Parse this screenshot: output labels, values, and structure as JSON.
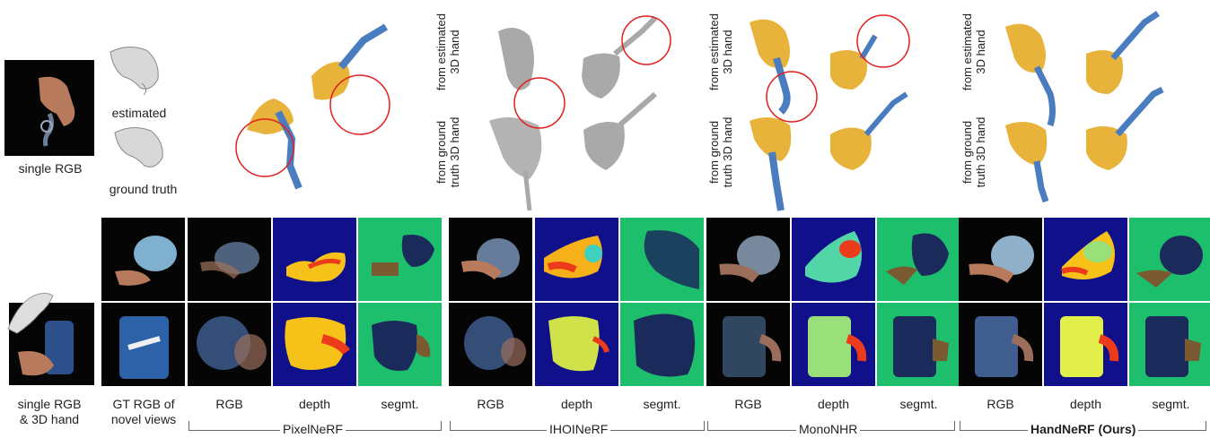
{
  "top_row": {
    "input_label": "single RGB",
    "hand_estimated_label": "estimated",
    "hand_ground_truth_label": "ground truth",
    "ihoi_from_estimated": [
      "from estimated",
      "3D hand"
    ],
    "ihoi_from_gt": [
      "from ground",
      "truth 3D hand"
    ],
    "mono_from_estimated": [
      "from estimated",
      "3D hand"
    ],
    "mono_from_gt": [
      "from ground",
      "truth 3D hand"
    ],
    "ours_from_estimated": [
      "from estimated",
      "3D hand"
    ],
    "ours_from_gt": [
      "from ground",
      "truth 3D hand"
    ]
  },
  "bottom_row": {
    "input_label": [
      "single RGB",
      "& 3D hand"
    ],
    "gt_label": [
      "GT RGB of",
      "novel views"
    ],
    "columns": [
      "RGB",
      "depth",
      "segmt.",
      "RGB",
      "depth",
      "segmt.",
      "RGB",
      "depth",
      "segmt.",
      "RGB",
      "depth",
      "segmt."
    ],
    "methods": [
      "PixelNeRF",
      "IHOINeRF",
      "MonoNHR",
      "HandNeRF (Ours)"
    ]
  },
  "colors": {
    "object_blue": "#4a7cc0",
    "hand_gold": "#e8b33a",
    "highlight_circle": "#e0201f",
    "depth_background": "#10108a",
    "seg_background": "#1dbf6c",
    "seg_object": "#1a2a5a",
    "seg_hand": "#7a5a30"
  }
}
